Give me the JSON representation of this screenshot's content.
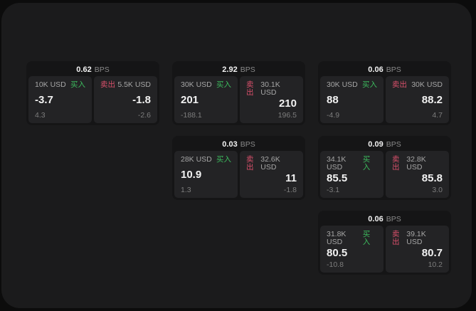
{
  "theme": {
    "outer_bg": "#0c0c0c",
    "panel_bg": "#1b1b1c",
    "card_bg": "#151516",
    "tile_bg": "#232325",
    "buy_color": "#3cba5d",
    "sell_color": "#d9506b"
  },
  "labels": {
    "bps": "BPS",
    "buy": "买入",
    "sell": "卖出"
  },
  "cards": [
    {
      "row": 1,
      "col": 1,
      "bps": "0.62",
      "buy": {
        "amount": "10K USD",
        "value": "-3.7",
        "delta": "4.3"
      },
      "sell": {
        "amount": "5.5K USD",
        "value": "-1.8",
        "delta": "-2.6"
      }
    },
    {
      "row": 1,
      "col": 2,
      "bps": "2.92",
      "buy": {
        "amount": "30K USD",
        "value": "201",
        "delta": "-188.1"
      },
      "sell": {
        "amount": "30.1K USD",
        "value": "210",
        "delta": "196.5"
      }
    },
    {
      "row": 1,
      "col": 3,
      "bps": "0.06",
      "buy": {
        "amount": "30K USD",
        "value": "88",
        "delta": "-4.9"
      },
      "sell": {
        "amount": "30K USD",
        "value": "88.2",
        "delta": "4.7"
      }
    },
    {
      "row": 2,
      "col": 2,
      "bps": "0.03",
      "buy": {
        "amount": "28K USD",
        "value": "10.9",
        "delta": "1.3"
      },
      "sell": {
        "amount": "32.6K USD",
        "value": "11",
        "delta": "-1.8"
      }
    },
    {
      "row": 2,
      "col": 3,
      "bps": "0.09",
      "buy": {
        "amount": "34.1K USD",
        "value": "85.5",
        "delta": "-3.1"
      },
      "sell": {
        "amount": "32.8K USD",
        "value": "85.8",
        "delta": "3.0"
      }
    },
    {
      "row": 3,
      "col": 3,
      "bps": "0.06",
      "buy": {
        "amount": "31.8K USD",
        "value": "80.5",
        "delta": "-10.8"
      },
      "sell": {
        "amount": "39.1K USD",
        "value": "80.7",
        "delta": "10.2"
      }
    }
  ]
}
